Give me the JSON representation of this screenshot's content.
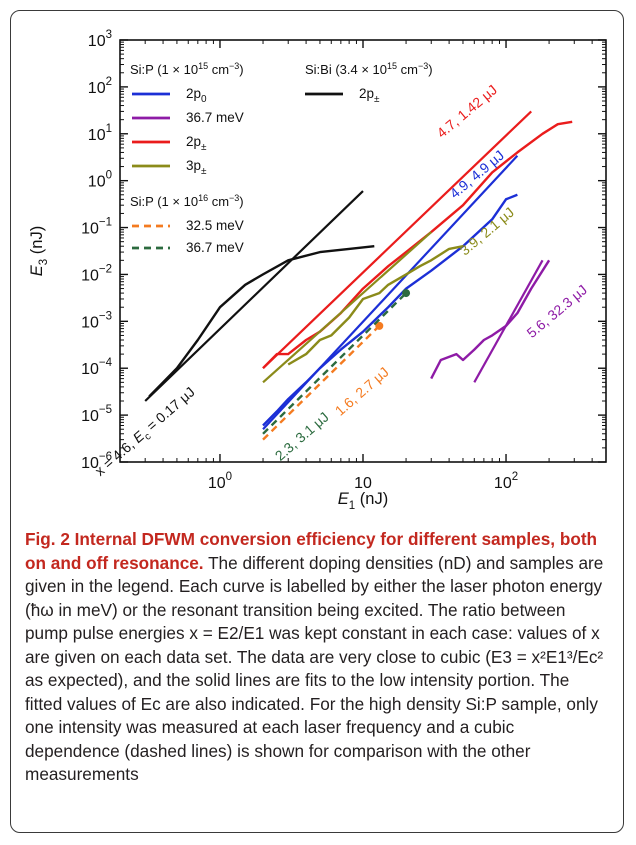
{
  "chart_data": {
    "type": "line",
    "x_scale": "log",
    "y_scale": "log",
    "xlim": [
      0.2,
      500
    ],
    "ylim": [
      1e-06,
      1000
    ],
    "xlabel": {
      "sym": "E",
      "sub": "1",
      "unit": " (nJ)"
    },
    "ylabel": {
      "sym": "E",
      "sub": "3",
      "unit": " (nJ)"
    },
    "x_ticks": [
      {
        "value": 1,
        "base": "10",
        "exp": "0"
      },
      {
        "value": 10,
        "base": "10",
        "exp": ""
      },
      {
        "value": 100,
        "base": "10",
        "exp": "2"
      }
    ],
    "y_ticks": [
      {
        "value": 1e-06,
        "base": "10",
        "exp": "−6"
      },
      {
        "value": 1e-05,
        "base": "10",
        "exp": "−5"
      },
      {
        "value": 0.0001,
        "base": "10",
        "exp": "−4"
      },
      {
        "value": 0.001,
        "base": "10",
        "exp": "−3"
      },
      {
        "value": 0.01,
        "base": "10",
        "exp": "−2"
      },
      {
        "value": 0.1,
        "base": "10",
        "exp": "−1"
      },
      {
        "value": 1,
        "base": "10",
        "exp": "0"
      },
      {
        "value": 10,
        "base": "10",
        "exp": "1"
      },
      {
        "value": 100,
        "base": "10",
        "exp": "2"
      },
      {
        "value": 1000,
        "base": "10",
        "exp": "3"
      }
    ],
    "legend_groups": [
      {
        "title": {
          "pre": "Si:P (1 × 10",
          "exp": "15",
          "post": " cm",
          "exp2": "−3",
          "end": ")"
        },
        "entries": [
          "2p0",
          "36.7 meV",
          "2p±",
          "3p±"
        ]
      },
      {
        "title": {
          "pre": "Si:Bi (3.4 × 10",
          "exp": "15",
          "post": " cm",
          "exp2": "−3",
          "end": ")"
        },
        "entries": [
          "2p±"
        ]
      },
      {
        "title": {
          "pre": "Si:P (1 × 10",
          "exp": "16",
          "post": " cm",
          "exp2": "−3",
          "end": ")"
        },
        "entries": [
          "32.5 meV",
          "36.7 meV"
        ]
      }
    ],
    "series": [
      {
        "name": "2p0",
        "group": "Si:P (1 × 10^15 cm^-3)",
        "color": "#1c2fd6",
        "dash": false,
        "data": [
          [
            2,
            6e-06
          ],
          [
            2.5,
            1.2e-05
          ],
          [
            3,
            2.2e-05
          ],
          [
            4,
            5e-05
          ],
          [
            5,
            0.0001
          ],
          [
            7,
            0.00025
          ],
          [
            10,
            0.0006
          ],
          [
            15,
            0.002
          ],
          [
            20,
            0.005
          ],
          [
            30,
            0.012
          ],
          [
            50,
            0.04
          ],
          [
            80,
            0.15
          ],
          [
            100,
            0.4
          ],
          [
            120,
            0.5
          ]
        ],
        "fit": [
          [
            2,
            5e-06
          ],
          [
            120,
            3.4
          ]
        ],
        "label": "4.9, 4.9 μJ"
      },
      {
        "name": "36.7 meV",
        "group": "Si:P (1 × 10^15 cm^-3)",
        "color": "#8e1ba6",
        "dash": false,
        "data": [
          [
            30,
            6e-05
          ],
          [
            35,
            0.00015
          ],
          [
            45,
            0.0002
          ],
          [
            50,
            0.00015
          ],
          [
            60,
            0.00025
          ],
          [
            70,
            0.0004
          ],
          [
            80,
            0.0005
          ],
          [
            100,
            0.0008
          ],
          [
            120,
            0.0015
          ],
          [
            150,
            0.005
          ],
          [
            200,
            0.02
          ]
        ],
        "fit": [
          [
            60,
            5e-05
          ],
          [
            180,
            0.02
          ]
        ],
        "label": "5.6, 32.3 μJ"
      },
      {
        "name": "2p±",
        "group": "Si:P (1 × 10^15 cm^-3)",
        "color": "#ea1c1c",
        "dash": false,
        "data": [
          [
            2,
            0.0001
          ],
          [
            2.5,
            0.0002
          ],
          [
            3,
            0.0002
          ],
          [
            4,
            0.0004
          ],
          [
            5,
            0.0006
          ],
          [
            7,
            0.0015
          ],
          [
            10,
            0.005
          ],
          [
            15,
            0.015
          ],
          [
            20,
            0.03
          ],
          [
            30,
            0.08
          ],
          [
            50,
            0.3
          ],
          [
            80,
            1.5
          ],
          [
            120,
            4
          ],
          [
            180,
            10
          ],
          [
            230,
            16
          ],
          [
            290,
            18
          ]
        ],
        "fit": [
          [
            2,
            0.0001
          ],
          [
            150,
            30
          ]
        ],
        "label": "4.7, 1.42 μJ"
      },
      {
        "name": "3p±",
        "group": "Si:P (1 × 10^15 cm^-3)",
        "color": "#8b8b1a",
        "dash": false,
        "data": [
          [
            3,
            0.00012
          ],
          [
            4,
            0.0002
          ],
          [
            5,
            0.0004
          ],
          [
            6,
            0.0005
          ],
          [
            8,
            0.0012
          ],
          [
            10,
            0.003
          ],
          [
            13,
            0.004
          ],
          [
            15,
            0.006
          ],
          [
            20,
            0.01
          ],
          [
            25,
            0.015
          ],
          [
            30,
            0.02
          ],
          [
            40,
            0.035
          ],
          [
            50,
            0.04
          ]
        ],
        "fit": [
          [
            2,
            5e-05
          ],
          [
            30,
            0.08
          ]
        ],
        "label": "3.9, 2.1 μJ"
      },
      {
        "name": "2p±",
        "group": "Si:Bi (3.4 × 10^15 cm^-3)",
        "color": "#111111",
        "dash": false,
        "data": [
          [
            0.32,
            2.5e-05
          ],
          [
            0.4,
            5e-05
          ],
          [
            0.5,
            0.0001
          ],
          [
            0.7,
            0.0004
          ],
          [
            1,
            0.002
          ],
          [
            1.5,
            0.006
          ],
          [
            2,
            0.01
          ],
          [
            3,
            0.02
          ],
          [
            5,
            0.03
          ],
          [
            8,
            0.035
          ],
          [
            12,
            0.04
          ]
        ],
        "fit": [
          [
            0.3,
            2e-05
          ],
          [
            10,
            0.6
          ]
        ],
        "label": "x = 4.6, Ec = 0.17 μJ"
      },
      {
        "name": "32.5 meV",
        "group": "Si:P (1 × 10^16 cm^-3)",
        "color": "#f47b20",
        "dash": true,
        "data": [
          [
            2,
            3e-06
          ],
          [
            13,
            0.0008
          ]
        ],
        "marker": [
          13,
          0.0008
        ],
        "label": "1.6, 2.7 μJ"
      },
      {
        "name": "36.7 meV",
        "group": "Si:P (1 × 10^16 cm^-3)",
        "color": "#2c6b3f",
        "dash": true,
        "data": [
          [
            2,
            4e-06
          ],
          [
            20,
            0.004
          ]
        ],
        "marker": [
          20,
          0.004
        ],
        "label": "2.3, 3.1 μJ"
      }
    ]
  },
  "caption": {
    "title": "Fig. 2 Internal DFWM conversion efficiency for different samples, both on and off resonance.",
    "body": "The different doping densities (nD) and samples are given in the legend. Each curve is labelled by either the laser photon energy (ħω in meV) or the resonant transition being excited. The ratio between pump pulse energies x = E2/E1 was kept constant in each case: values of x are given on each data set. The data are very close to cubic (E3 = x²E1³/Ec² as expected), and the solid lines are fits to the low intensity portion. The fitted values of Ec are also indicated. For the high density Si:P sample, only one intensity was measured at each laser frequency and a cubic dependence (dashed lines) is shown for comparison with the other measurements"
  }
}
